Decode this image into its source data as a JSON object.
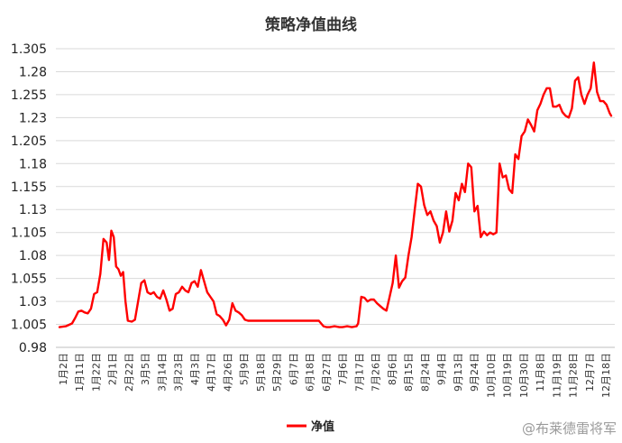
{
  "chart_data": {
    "type": "line",
    "title": "策略净值曲线",
    "legend": {
      "position": "bottom",
      "label": "净值"
    },
    "watermark": "@布莱德雷将军",
    "grid": true,
    "ylim": [
      0.98,
      1.305
    ],
    "y_ticks": [
      "0.98",
      "1.005",
      "1.03",
      "1.055",
      "1.08",
      "1.105",
      "1.13",
      "1.155",
      "1.18",
      "1.205",
      "1.23",
      "1.255",
      "1.28",
      "1.305"
    ],
    "x_ticks": [
      "1月2日",
      "1月11日",
      "1月22日",
      "2月1日",
      "2月22日",
      "3月5日",
      "3月14日",
      "3月23日",
      "4月3日",
      "4月17日",
      "4月26日",
      "5月9日",
      "5月18日",
      "5月29日",
      "6月7日",
      "6月18日",
      "6月27日",
      "7月6日",
      "7月17日",
      "7月26日",
      "8月6日",
      "8月15日",
      "8月24日",
      "9月4日",
      "9月13日",
      "9月24日",
      "10月10日",
      "10月19日",
      "10月30日",
      "11月8日",
      "11月19日",
      "11月28日",
      "12月7日",
      "12月18日"
    ],
    "series": [
      {
        "name": "净值",
        "color": "#ff0000",
        "values": [
          [
            0,
            1.002
          ],
          [
            0.4,
            1.003
          ],
          [
            0.8,
            1.006
          ],
          [
            1.0,
            1.012
          ],
          [
            1.2,
            1.019
          ],
          [
            1.4,
            1.02
          ],
          [
            1.6,
            1.018
          ],
          [
            1.8,
            1.017
          ],
          [
            2.0,
            1.022
          ],
          [
            2.2,
            1.038
          ],
          [
            2.4,
            1.04
          ],
          [
            2.6,
            1.06
          ],
          [
            2.8,
            1.098
          ],
          [
            3.0,
            1.094
          ],
          [
            3.15,
            1.075
          ],
          [
            3.3,
            1.107
          ],
          [
            3.45,
            1.1
          ],
          [
            3.6,
            1.068
          ],
          [
            3.75,
            1.065
          ],
          [
            3.9,
            1.058
          ],
          [
            4.05,
            1.062
          ],
          [
            4.2,
            1.03
          ],
          [
            4.35,
            1.009
          ],
          [
            4.6,
            1.008
          ],
          [
            4.8,
            1.01
          ],
          [
            5.0,
            1.03
          ],
          [
            5.2,
            1.05
          ],
          [
            5.4,
            1.053
          ],
          [
            5.6,
            1.04
          ],
          [
            5.8,
            1.038
          ],
          [
            6.0,
            1.04
          ],
          [
            6.2,
            1.035
          ],
          [
            6.4,
            1.033
          ],
          [
            6.6,
            1.042
          ],
          [
            6.8,
            1.032
          ],
          [
            7.0,
            1.02
          ],
          [
            7.2,
            1.022
          ],
          [
            7.4,
            1.038
          ],
          [
            7.6,
            1.04
          ],
          [
            7.8,
            1.046
          ],
          [
            8.0,
            1.042
          ],
          [
            8.2,
            1.04
          ],
          [
            8.4,
            1.05
          ],
          [
            8.6,
            1.052
          ],
          [
            8.8,
            1.046
          ],
          [
            9.0,
            1.064
          ],
          [
            9.2,
            1.052
          ],
          [
            9.4,
            1.04
          ],
          [
            9.6,
            1.035
          ],
          [
            9.8,
            1.03
          ],
          [
            10.0,
            1.016
          ],
          [
            10.2,
            1.014
          ],
          [
            10.4,
            1.01
          ],
          [
            10.6,
            1.004
          ],
          [
            10.8,
            1.01
          ],
          [
            11.0,
            1.028
          ],
          [
            11.2,
            1.02
          ],
          [
            11.4,
            1.018
          ],
          [
            11.6,
            1.015
          ],
          [
            11.8,
            1.01
          ],
          [
            12.0,
            1.009
          ],
          [
            12.3,
            1.009
          ],
          [
            13,
            1.009
          ],
          [
            14,
            1.009
          ],
          [
            15,
            1.009
          ],
          [
            16,
            1.009
          ],
          [
            16.5,
            1.009
          ],
          [
            16.8,
            1.003
          ],
          [
            17.0,
            1.002
          ],
          [
            17.2,
            1.002
          ],
          [
            17.5,
            1.003
          ],
          [
            17.8,
            1.002
          ],
          [
            18.0,
            1.002
          ],
          [
            18.3,
            1.003
          ],
          [
            18.6,
            1.002
          ],
          [
            18.9,
            1.003
          ],
          [
            19.0,
            1.006
          ],
          [
            19.2,
            1.035
          ],
          [
            19.4,
            1.034
          ],
          [
            19.6,
            1.03
          ],
          [
            19.8,
            1.032
          ],
          [
            20.0,
            1.032
          ],
          [
            20.2,
            1.028
          ],
          [
            20.4,
            1.025
          ],
          [
            20.6,
            1.022
          ],
          [
            20.8,
            1.02
          ],
          [
            21.0,
            1.035
          ],
          [
            21.2,
            1.05
          ],
          [
            21.4,
            1.08
          ],
          [
            21.6,
            1.045
          ],
          [
            21.8,
            1.052
          ],
          [
            22.0,
            1.056
          ],
          [
            22.2,
            1.08
          ],
          [
            22.4,
            1.1
          ],
          [
            22.6,
            1.13
          ],
          [
            22.8,
            1.158
          ],
          [
            23.0,
            1.155
          ],
          [
            23.2,
            1.135
          ],
          [
            23.4,
            1.124
          ],
          [
            23.6,
            1.128
          ],
          [
            23.8,
            1.118
          ],
          [
            24.0,
            1.112
          ],
          [
            24.2,
            1.094
          ],
          [
            24.4,
            1.105
          ],
          [
            24.6,
            1.128
          ],
          [
            24.8,
            1.106
          ],
          [
            25.0,
            1.118
          ],
          [
            25.2,
            1.148
          ],
          [
            25.4,
            1.14
          ],
          [
            25.6,
            1.158
          ],
          [
            25.8,
            1.149
          ],
          [
            26.0,
            1.18
          ],
          [
            26.2,
            1.176
          ],
          [
            26.4,
            1.128
          ],
          [
            26.6,
            1.134
          ],
          [
            26.8,
            1.1
          ],
          [
            27.0,
            1.106
          ],
          [
            27.2,
            1.102
          ],
          [
            27.4,
            1.105
          ],
          [
            27.6,
            1.103
          ],
          [
            27.8,
            1.105
          ],
          [
            28.0,
            1.18
          ],
          [
            28.2,
            1.165
          ],
          [
            28.4,
            1.167
          ],
          [
            28.6,
            1.152
          ],
          [
            28.8,
            1.148
          ],
          [
            29.0,
            1.19
          ],
          [
            29.2,
            1.185
          ],
          [
            29.4,
            1.21
          ],
          [
            29.6,
            1.215
          ],
          [
            29.8,
            1.228
          ],
          [
            30.0,
            1.222
          ],
          [
            30.2,
            1.215
          ],
          [
            30.4,
            1.238
          ],
          [
            30.6,
            1.245
          ],
          [
            30.8,
            1.255
          ],
          [
            31.0,
            1.262
          ],
          [
            31.2,
            1.262
          ],
          [
            31.4,
            1.242
          ],
          [
            31.6,
            1.242
          ],
          [
            31.8,
            1.244
          ],
          [
            32.0,
            1.236
          ],
          [
            32.2,
            1.232
          ],
          [
            32.4,
            1.23
          ],
          [
            32.6,
            1.24
          ],
          [
            32.8,
            1.27
          ],
          [
            33.0,
            1.274
          ],
          [
            33.2,
            1.255
          ],
          [
            33.4,
            1.245
          ],
          [
            33.6,
            1.255
          ],
          [
            33.8,
            1.262
          ],
          [
            34.0,
            1.29
          ],
          [
            34.2,
            1.258
          ],
          [
            34.4,
            1.248
          ],
          [
            34.6,
            1.248
          ],
          [
            34.8,
            1.244
          ],
          [
            35.0,
            1.235
          ],
          [
            35.1,
            1.232
          ]
        ]
      }
    ]
  }
}
